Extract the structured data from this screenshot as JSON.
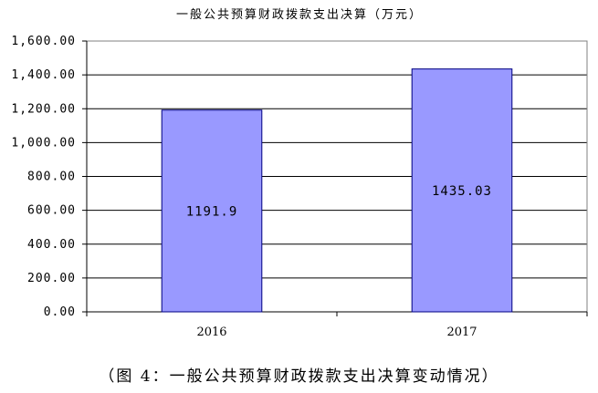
{
  "chart_data": {
    "type": "bar",
    "title": "一般公共预算财政拨款支出决算（万元）",
    "categories": [
      "2016",
      "2017"
    ],
    "values": [
      1191.9,
      1435.03
    ],
    "value_labels": [
      "1191.9",
      "1435.03"
    ],
    "ylim": [
      0,
      1600
    ],
    "yticks": [
      0,
      200,
      400,
      600,
      800,
      1000,
      1200,
      1400,
      1600
    ],
    "ytick_labels": [
      "0.00",
      "200.00",
      "400.00",
      "600.00",
      "800.00",
      "1,000.00",
      "1,200.00",
      "1,400.00",
      "1,600.00"
    ],
    "grid": true,
    "legend": "none",
    "bar_color": "#9999ff",
    "bar_edge_color": "#000080",
    "plot_background": "#ffffff"
  },
  "caption": "（图 4：一般公共预算财政拨款支出决算变动情况）"
}
